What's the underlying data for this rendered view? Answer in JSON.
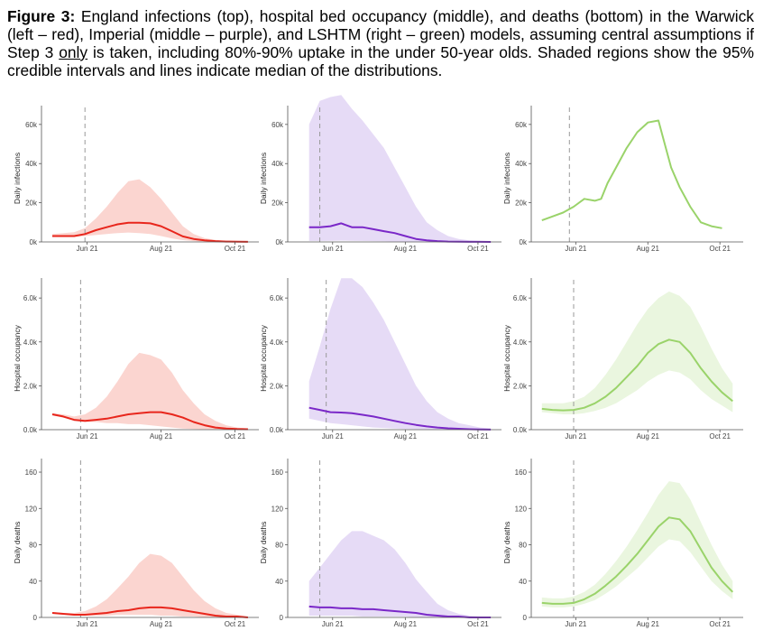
{
  "caption": {
    "label": "Figure 3:",
    "part1": " England infections (top), hospital bed occupancy (middle), and deaths (bottom) in the Warwick (left – red), Imperial (middle – purple), and LSHTM (right – green) models, assuming central assumptions if Step 3 ",
    "underlined": "only",
    "part2": " is taken, including 80%-90% uptake in the under 50-year olds. Shaded regions show the 95% credible intervals and lines indicate median of the distributions."
  },
  "colors": {
    "warwick_line": "#e8261c",
    "warwick_band": "#fbd5d0",
    "imperial_line": "#7a28c8",
    "imperial_band": "#e6dbf6",
    "lshtm_line": "#9ad36a",
    "lshtm_band": "#eaf6df",
    "axis": "#555555",
    "dashed": "#999999"
  },
  "chart_data": [
    {
      "type": "area",
      "panel": "warwick-infections",
      "ylabel": "Daily infections",
      "ylim": [
        0,
        65000
      ],
      "yticks": [
        0,
        20000,
        40000,
        60000
      ],
      "ytick_labels": [
        "0k",
        "20k",
        "40k",
        "60k"
      ],
      "xticks": [
        "Jun 21",
        "Aug 21",
        "Oct 21"
      ],
      "xtick_pos": [
        0.21,
        0.55,
        0.89
      ],
      "xlim": [
        0,
        1
      ],
      "vline": 0.2,
      "x": [
        0.05,
        0.1,
        0.15,
        0.2,
        0.25,
        0.3,
        0.35,
        0.4,
        0.45,
        0.5,
        0.55,
        0.6,
        0.65,
        0.7,
        0.75,
        0.8,
        0.85,
        0.9,
        0.95
      ],
      "median": [
        3000,
        3000,
        3000,
        4000,
        6000,
        7500,
        9000,
        9800,
        9800,
        9500,
        8000,
        5500,
        2800,
        1500,
        800,
        400,
        200,
        100,
        50
      ],
      "lower": [
        2500,
        2500,
        2500,
        3000,
        3500,
        4000,
        4500,
        4800,
        4500,
        4000,
        3000,
        1800,
        900,
        400,
        150,
        50,
        20,
        10,
        5
      ],
      "upper": [
        4000,
        4500,
        5000,
        7000,
        12000,
        18000,
        25000,
        31000,
        32000,
        28000,
        22000,
        15000,
        8000,
        4000,
        2000,
        1000,
        500,
        300,
        150
      ]
    },
    {
      "type": "area",
      "panel": "imperial-infections",
      "ylabel": "Daily infections",
      "ylim": [
        0,
        65000
      ],
      "yticks": [
        0,
        20000,
        40000,
        60000
      ],
      "ytick_labels": [
        "0k",
        "20k",
        "40k",
        "60k"
      ],
      "xticks": [
        "Jun 21",
        "Aug 21",
        "Oct 21"
      ],
      "xtick_pos": [
        0.21,
        0.55,
        0.89
      ],
      "xlim": [
        0,
        1
      ],
      "vline": 0.15,
      "x": [
        0.1,
        0.15,
        0.2,
        0.25,
        0.3,
        0.35,
        0.4,
        0.45,
        0.5,
        0.55,
        0.6,
        0.65,
        0.7,
        0.75,
        0.8,
        0.85,
        0.9,
        0.95
      ],
      "median": [
        7500,
        7500,
        8000,
        9500,
        7500,
        7500,
        6500,
        5500,
        4500,
        3000,
        1500,
        800,
        400,
        200,
        100,
        50,
        30,
        20
      ],
      "lower": [
        500,
        500,
        600,
        700,
        600,
        500,
        400,
        300,
        200,
        100,
        50,
        30,
        20,
        10,
        5,
        5,
        5,
        5
      ],
      "upper": [
        60000,
        72000,
        74000,
        75000,
        68000,
        62000,
        55000,
        48000,
        38000,
        28000,
        18000,
        10000,
        6000,
        3000,
        1500,
        800,
        500,
        300
      ]
    },
    {
      "type": "line",
      "panel": "lshtm-infections",
      "ylabel": "Daily infections",
      "ylim": [
        0,
        65000
      ],
      "yticks": [
        0,
        20000,
        40000,
        60000
      ],
      "ytick_labels": [
        "0k",
        "20k",
        "40k",
        "60k"
      ],
      "xticks": [
        "Jun 21",
        "Aug 21",
        "Oct 21"
      ],
      "xtick_pos": [
        0.21,
        0.55,
        0.89
      ],
      "xlim": [
        0,
        1
      ],
      "vline": 0.18,
      "x": [
        0.05,
        0.1,
        0.15,
        0.2,
        0.25,
        0.3,
        0.33,
        0.36,
        0.4,
        0.45,
        0.5,
        0.55,
        0.6,
        0.63,
        0.66,
        0.7,
        0.75,
        0.8,
        0.85,
        0.9
      ],
      "median": [
        11000,
        13000,
        15000,
        18000,
        22000,
        21000,
        22000,
        30000,
        38000,
        48000,
        56000,
        61000,
        62000,
        50000,
        38000,
        28000,
        18000,
        10000,
        8000,
        7000
      ]
    },
    {
      "type": "area",
      "panel": "warwick-hospital",
      "ylabel": "Hospital occupancy",
      "ylim": [
        0,
        6500
      ],
      "yticks": [
        0,
        2000,
        4000,
        6000
      ],
      "ytick_labels": [
        "0.0k",
        "2.0k",
        "4.0k",
        "6.0k"
      ],
      "xticks": [
        "Jun 21",
        "Aug 21",
        "Oct 21"
      ],
      "xtick_pos": [
        0.21,
        0.55,
        0.89
      ],
      "xlim": [
        0,
        1
      ],
      "vline": 0.18,
      "x": [
        0.05,
        0.1,
        0.15,
        0.2,
        0.25,
        0.3,
        0.35,
        0.4,
        0.45,
        0.5,
        0.55,
        0.6,
        0.65,
        0.7,
        0.75,
        0.8,
        0.85,
        0.9,
        0.95
      ],
      "median": [
        700,
        600,
        450,
        400,
        450,
        500,
        600,
        700,
        750,
        800,
        800,
        700,
        550,
        350,
        200,
        100,
        50,
        30,
        20
      ],
      "lower": [
        650,
        550,
        400,
        350,
        350,
        300,
        300,
        250,
        250,
        200,
        150,
        100,
        50,
        30,
        15,
        10,
        5,
        5,
        5
      ],
      "upper": [
        750,
        700,
        600,
        700,
        1000,
        1500,
        2200,
        3000,
        3500,
        3400,
        3200,
        2600,
        1800,
        1200,
        700,
        400,
        200,
        100,
        50
      ]
    },
    {
      "type": "area",
      "panel": "imperial-hospital",
      "ylabel": "Hospital occupancy",
      "ylim": [
        0,
        6500
      ],
      "yticks": [
        0,
        2000,
        4000,
        6000
      ],
      "ytick_labels": [
        "0.0k",
        "2.0k",
        "4.0k",
        "6.0k"
      ],
      "xticks": [
        "Jun 21",
        "Aug 21",
        "Oct 21"
      ],
      "xtick_pos": [
        0.21,
        0.55,
        0.89
      ],
      "xlim": [
        0,
        1
      ],
      "vline": 0.18,
      "x": [
        0.1,
        0.15,
        0.2,
        0.25,
        0.3,
        0.35,
        0.4,
        0.45,
        0.5,
        0.55,
        0.6,
        0.65,
        0.7,
        0.75,
        0.8,
        0.85,
        0.9,
        0.95
      ],
      "median": [
        1000,
        900,
        800,
        780,
        750,
        680,
        600,
        500,
        400,
        300,
        220,
        150,
        100,
        60,
        40,
        20,
        10,
        5
      ],
      "lower": [
        500,
        400,
        300,
        250,
        200,
        150,
        100,
        80,
        50,
        30,
        20,
        10,
        5,
        5,
        5,
        5,
        5,
        5
      ],
      "upper": [
        2200,
        3800,
        5500,
        6900,
        6900,
        6500,
        5800,
        5000,
        4000,
        3000,
        2000,
        1300,
        800,
        500,
        300,
        200,
        100,
        50
      ]
    },
    {
      "type": "area",
      "panel": "lshtm-hospital",
      "ylabel": "Hospital occupancy",
      "ylim": [
        0,
        6500
      ],
      "yticks": [
        0,
        2000,
        4000,
        6000
      ],
      "ytick_labels": [
        "0.0k",
        "2.0k",
        "4.0k",
        "6.0k"
      ],
      "xticks": [
        "Jun 21",
        "Aug 21",
        "Oct 21"
      ],
      "xtick_pos": [
        0.21,
        0.55,
        0.89
      ],
      "xlim": [
        0,
        1
      ],
      "vline": 0.2,
      "x": [
        0.05,
        0.1,
        0.15,
        0.2,
        0.25,
        0.3,
        0.35,
        0.4,
        0.45,
        0.5,
        0.55,
        0.6,
        0.65,
        0.7,
        0.75,
        0.8,
        0.85,
        0.9,
        0.95
      ],
      "median": [
        950,
        900,
        880,
        900,
        1000,
        1200,
        1500,
        1900,
        2400,
        2900,
        3500,
        3900,
        4100,
        4000,
        3500,
        2800,
        2200,
        1700,
        1300
      ],
      "lower": [
        800,
        750,
        700,
        700,
        750,
        850,
        1000,
        1200,
        1500,
        1800,
        2200,
        2500,
        2700,
        2600,
        2300,
        1800,
        1400,
        1100,
        800
      ],
      "upper": [
        1200,
        1200,
        1200,
        1300,
        1500,
        1900,
        2500,
        3200,
        4000,
        4800,
        5500,
        6000,
        6300,
        6100,
        5600,
        4700,
        3700,
        2800,
        2100
      ]
    },
    {
      "type": "area",
      "panel": "warwick-deaths",
      "ylabel": "Daily deaths",
      "ylim": [
        0,
        165
      ],
      "yticks": [
        0,
        40,
        80,
        120,
        160
      ],
      "ytick_labels": [
        "0",
        "40",
        "80",
        "120",
        "160"
      ],
      "xticks": [
        "Jun 21",
        "Aug 21",
        "Oct 21"
      ],
      "xtick_pos": [
        0.21,
        0.55,
        0.89
      ],
      "xlim": [
        0,
        1
      ],
      "vline": 0.18,
      "x": [
        0.05,
        0.1,
        0.15,
        0.2,
        0.25,
        0.3,
        0.35,
        0.4,
        0.45,
        0.5,
        0.55,
        0.6,
        0.65,
        0.7,
        0.75,
        0.8,
        0.85,
        0.9,
        0.95
      ],
      "median": [
        5,
        4,
        3,
        3,
        4,
        5,
        7,
        8,
        10,
        11,
        11,
        10,
        8,
        6,
        4,
        2,
        1,
        1,
        0
      ],
      "lower": [
        4,
        3,
        2,
        2,
        2,
        2,
        3,
        3,
        3,
        3,
        2,
        2,
        1,
        1,
        0,
        0,
        0,
        0,
        0
      ],
      "upper": [
        6,
        5,
        5,
        7,
        12,
        20,
        32,
        45,
        60,
        70,
        68,
        60,
        45,
        30,
        18,
        10,
        5,
        3,
        1
      ]
    },
    {
      "type": "area",
      "panel": "imperial-deaths",
      "ylabel": "Daily deaths",
      "ylim": [
        0,
        165
      ],
      "yticks": [
        0,
        40,
        80,
        120,
        160
      ],
      "ytick_labels": [
        "0",
        "40",
        "80",
        "120",
        "160"
      ],
      "xticks": [
        "Jun 21",
        "Aug 21",
        "Oct 21"
      ],
      "xtick_pos": [
        0.21,
        0.55,
        0.89
      ],
      "xlim": [
        0,
        1
      ],
      "vline": 0.15,
      "x": [
        0.1,
        0.15,
        0.2,
        0.25,
        0.3,
        0.35,
        0.4,
        0.45,
        0.5,
        0.55,
        0.6,
        0.65,
        0.7,
        0.75,
        0.8,
        0.85,
        0.9,
        0.95
      ],
      "median": [
        12,
        11,
        11,
        10,
        10,
        9,
        9,
        8,
        7,
        6,
        5,
        3,
        2,
        1,
        1,
        0,
        0,
        0
      ],
      "lower": [
        2,
        2,
        2,
        2,
        2,
        1,
        1,
        1,
        1,
        1,
        0,
        0,
        0,
        0,
        0,
        0,
        0,
        0
      ],
      "upper": [
        40,
        55,
        70,
        85,
        95,
        95,
        90,
        85,
        75,
        60,
        42,
        28,
        15,
        8,
        4,
        2,
        1,
        0
      ]
    },
    {
      "type": "area",
      "panel": "lshtm-deaths",
      "ylabel": "Daily deaths",
      "ylim": [
        0,
        165
      ],
      "yticks": [
        0,
        40,
        80,
        120,
        160
      ],
      "ytick_labels": [
        "0",
        "40",
        "80",
        "120",
        "160"
      ],
      "xticks": [
        "Jun 21",
        "Aug 21",
        "Oct 21"
      ],
      "xtick_pos": [
        0.21,
        0.55,
        0.89
      ],
      "xlim": [
        0,
        1
      ],
      "vline": 0.2,
      "x": [
        0.05,
        0.1,
        0.15,
        0.2,
        0.25,
        0.3,
        0.35,
        0.4,
        0.45,
        0.5,
        0.55,
        0.6,
        0.65,
        0.7,
        0.75,
        0.8,
        0.85,
        0.9,
        0.95
      ],
      "median": [
        16,
        15,
        15,
        16,
        20,
        26,
        35,
        45,
        57,
        70,
        85,
        100,
        110,
        108,
        95,
        75,
        55,
        40,
        28
      ],
      "lower": [
        12,
        11,
        11,
        12,
        15,
        19,
        26,
        34,
        44,
        54,
        66,
        78,
        86,
        84,
        72,
        56,
        40,
        29,
        20
      ],
      "upper": [
        22,
        21,
        21,
        23,
        28,
        36,
        48,
        62,
        78,
        96,
        115,
        135,
        150,
        148,
        130,
        105,
        80,
        58,
        40
      ]
    }
  ]
}
